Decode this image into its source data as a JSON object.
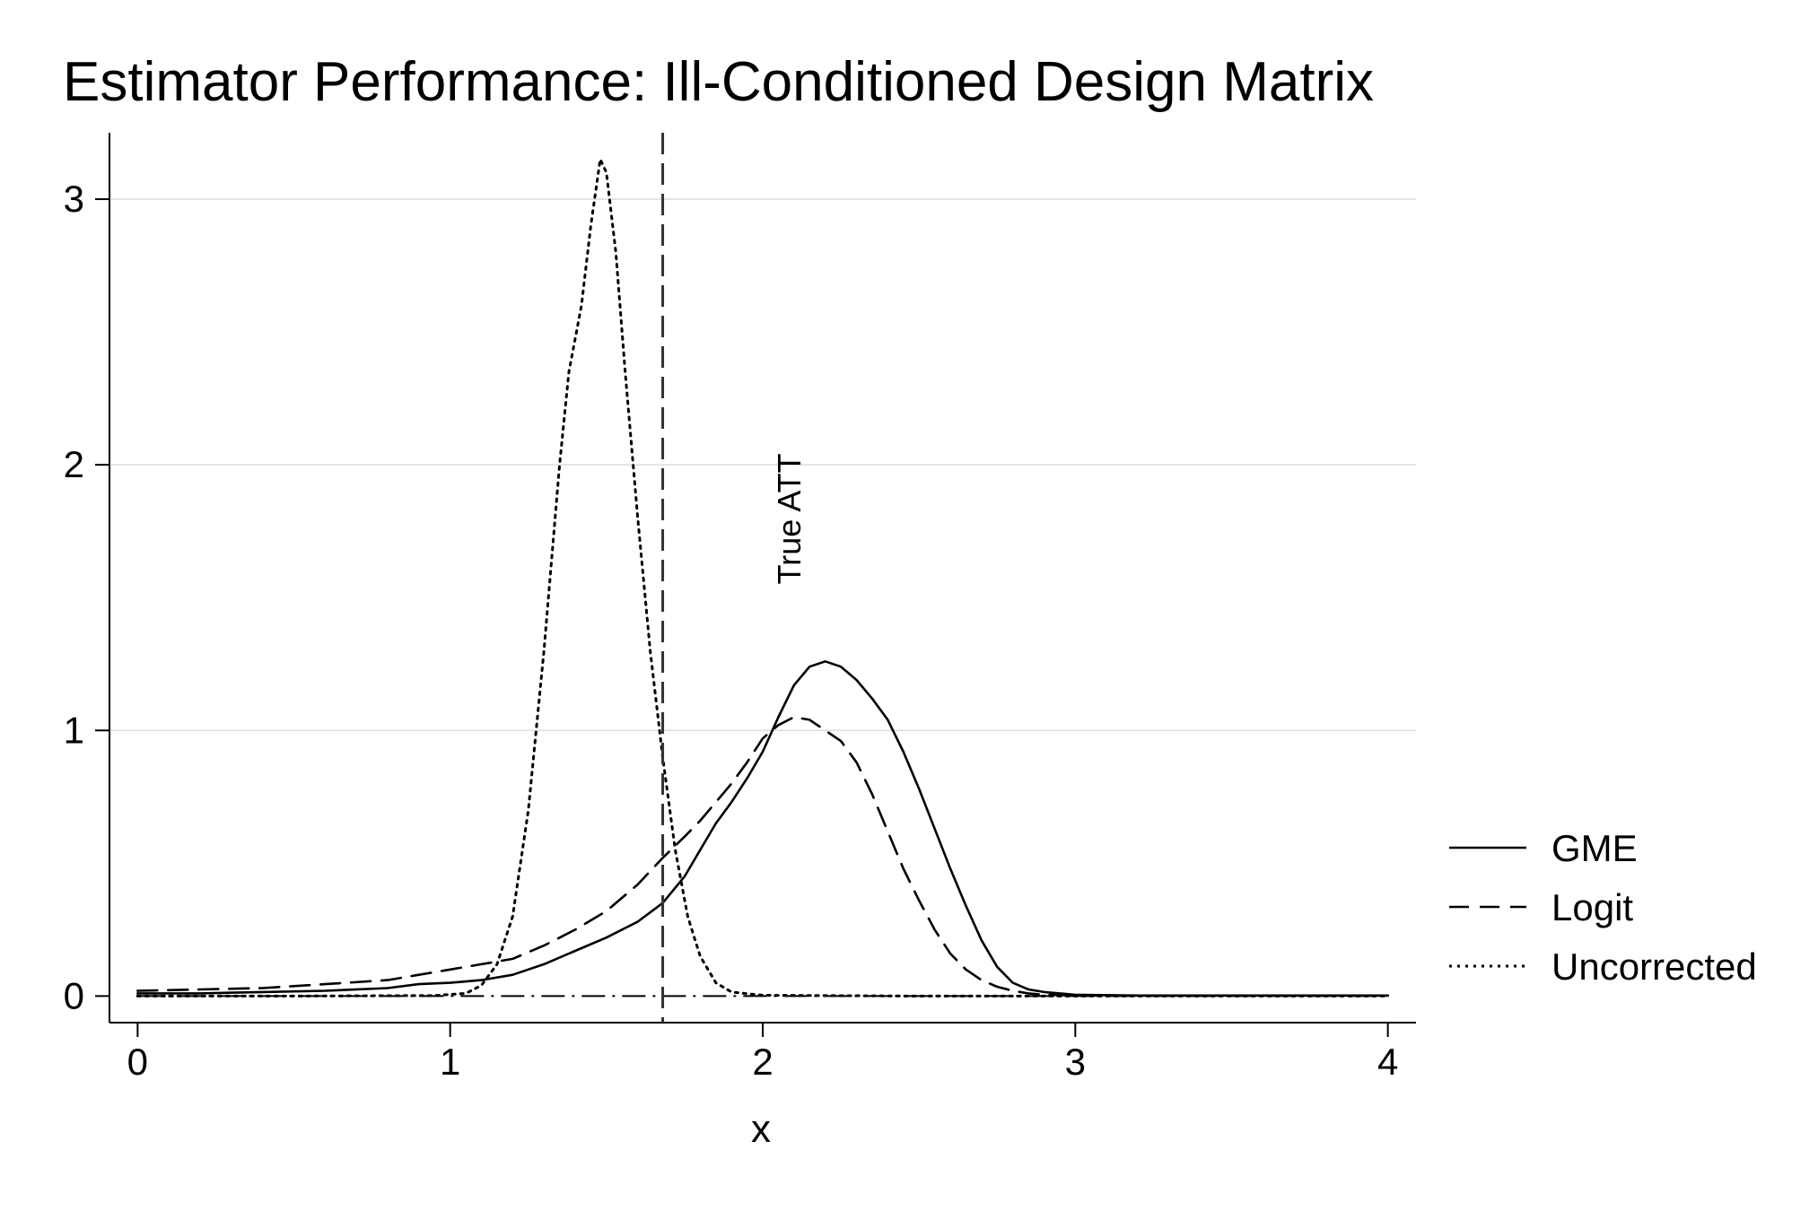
{
  "chart_data": {
    "type": "line",
    "title": "Estimator Performance: Ill-Conditioned Design Matrix",
    "xlabel": "x",
    "ylabel": "",
    "xlim": [
      -0.09,
      4.09
    ],
    "ylim": [
      -0.1,
      3.25
    ],
    "xticks": [
      0,
      1,
      2,
      3,
      4
    ],
    "yticks": [
      0,
      1,
      2,
      3
    ],
    "grid": "horizontal",
    "legend_position": "right",
    "reference_line": {
      "x": 1.68,
      "label": "True ATT",
      "label_y": 1.55,
      "style": "dashed"
    },
    "baseline": {
      "y": 0,
      "style": "dash-dot"
    },
    "series": [
      {
        "name": "GME",
        "style": "solid",
        "x": [
          0,
          0.2,
          0.4,
          0.6,
          0.8,
          0.9,
          1.0,
          1.1,
          1.2,
          1.3,
          1.4,
          1.5,
          1.6,
          1.68,
          1.75,
          1.8,
          1.85,
          1.9,
          1.95,
          2.0,
          2.05,
          2.1,
          2.15,
          2.2,
          2.25,
          2.3,
          2.35,
          2.4,
          2.45,
          2.5,
          2.55,
          2.6,
          2.65,
          2.7,
          2.75,
          2.8,
          2.85,
          2.9,
          3.0,
          3.2,
          3.6,
          4.0
        ],
        "y": [
          0.01,
          0.01,
          0.015,
          0.02,
          0.03,
          0.045,
          0.05,
          0.06,
          0.08,
          0.12,
          0.17,
          0.22,
          0.28,
          0.35,
          0.45,
          0.55,
          0.65,
          0.73,
          0.82,
          0.92,
          1.05,
          1.17,
          1.24,
          1.26,
          1.24,
          1.19,
          1.12,
          1.04,
          0.92,
          0.78,
          0.63,
          0.48,
          0.34,
          0.21,
          0.11,
          0.05,
          0.025,
          0.015,
          0.005,
          0.002,
          0.002,
          0.002
        ]
      },
      {
        "name": "Logit",
        "style": "dashed",
        "x": [
          0,
          0.2,
          0.4,
          0.6,
          0.8,
          0.9,
          1.0,
          1.1,
          1.2,
          1.3,
          1.4,
          1.5,
          1.6,
          1.68,
          1.75,
          1.8,
          1.85,
          1.9,
          1.95,
          2.0,
          2.05,
          2.1,
          2.15,
          2.2,
          2.25,
          2.3,
          2.35,
          2.4,
          2.45,
          2.5,
          2.55,
          2.6,
          2.65,
          2.7,
          2.75,
          2.8,
          2.85,
          2.9,
          3.0,
          3.2,
          3.6,
          4.0
        ],
        "y": [
          0.02,
          0.025,
          0.03,
          0.045,
          0.06,
          0.08,
          0.1,
          0.12,
          0.14,
          0.19,
          0.25,
          0.32,
          0.42,
          0.52,
          0.6,
          0.66,
          0.73,
          0.8,
          0.88,
          0.97,
          1.02,
          1.05,
          1.04,
          1.0,
          0.96,
          0.88,
          0.76,
          0.62,
          0.48,
          0.36,
          0.25,
          0.16,
          0.1,
          0.06,
          0.035,
          0.02,
          0.01,
          0.005,
          0.002,
          0.002,
          0.002,
          0.002
        ]
      },
      {
        "name": "Uncorrected",
        "style": "dotted",
        "x": [
          0,
          0.5,
          0.95,
          1.05,
          1.1,
          1.15,
          1.2,
          1.25,
          1.3,
          1.35,
          1.38,
          1.42,
          1.45,
          1.48,
          1.5,
          1.53,
          1.56,
          1.6,
          1.64,
          1.68,
          1.72,
          1.76,
          1.8,
          1.85,
          1.9,
          2.0,
          2.5,
          3.0,
          4.0
        ],
        "y": [
          0.0,
          0.0,
          0.002,
          0.01,
          0.04,
          0.12,
          0.3,
          0.7,
          1.3,
          2.0,
          2.35,
          2.6,
          2.9,
          3.15,
          3.1,
          2.8,
          2.35,
          1.8,
          1.3,
          0.9,
          0.55,
          0.3,
          0.15,
          0.05,
          0.015,
          0.003,
          0.0,
          0.0,
          0.0
        ]
      }
    ]
  }
}
